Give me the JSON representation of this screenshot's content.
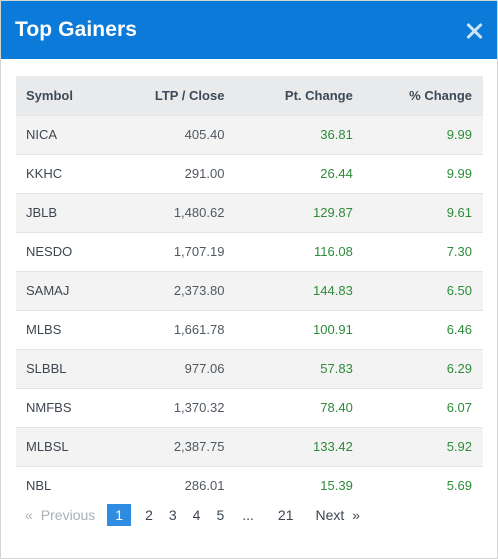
{
  "header": {
    "title": "Top Gainers"
  },
  "table": {
    "columns": [
      "Symbol",
      "LTP / Close",
      "Pt. Change",
      "% Change"
    ],
    "rows": [
      {
        "symbol": "NICA",
        "ltp": "405.40",
        "pt": "36.81",
        "pct": "9.99"
      },
      {
        "symbol": "KKHC",
        "ltp": "291.00",
        "pt": "26.44",
        "pct": "9.99"
      },
      {
        "symbol": "JBLB",
        "ltp": "1,480.62",
        "pt": "129.87",
        "pct": "9.61"
      },
      {
        "symbol": "NESDO",
        "ltp": "1,707.19",
        "pt": "116.08",
        "pct": "7.30"
      },
      {
        "symbol": "SAMAJ",
        "ltp": "2,373.80",
        "pt": "144.83",
        "pct": "6.50"
      },
      {
        "symbol": "MLBS",
        "ltp": "1,661.78",
        "pt": "100.91",
        "pct": "6.46"
      },
      {
        "symbol": "SLBBL",
        "ltp": "977.06",
        "pt": "57.83",
        "pct": "6.29"
      },
      {
        "symbol": "NMFBS",
        "ltp": "1,370.32",
        "pt": "78.40",
        "pct": "6.07"
      },
      {
        "symbol": "MLBSL",
        "ltp": "2,387.75",
        "pt": "133.42",
        "pct": "5.92"
      },
      {
        "symbol": "NBL",
        "ltp": "286.01",
        "pt": "15.39",
        "pct": "5.69"
      }
    ]
  },
  "pagination": {
    "prev_arrow": "«",
    "prev_label": "Previous",
    "pages": [
      "1",
      "2",
      "3",
      "4",
      "5"
    ],
    "ellipsis": "...",
    "last_page": "21",
    "next_label": "Next",
    "next_arrow": "»"
  },
  "colors": {
    "header_bg": "#0b7ad8",
    "positive": "#2e8b3a",
    "active_page": "#2f8ce0"
  }
}
